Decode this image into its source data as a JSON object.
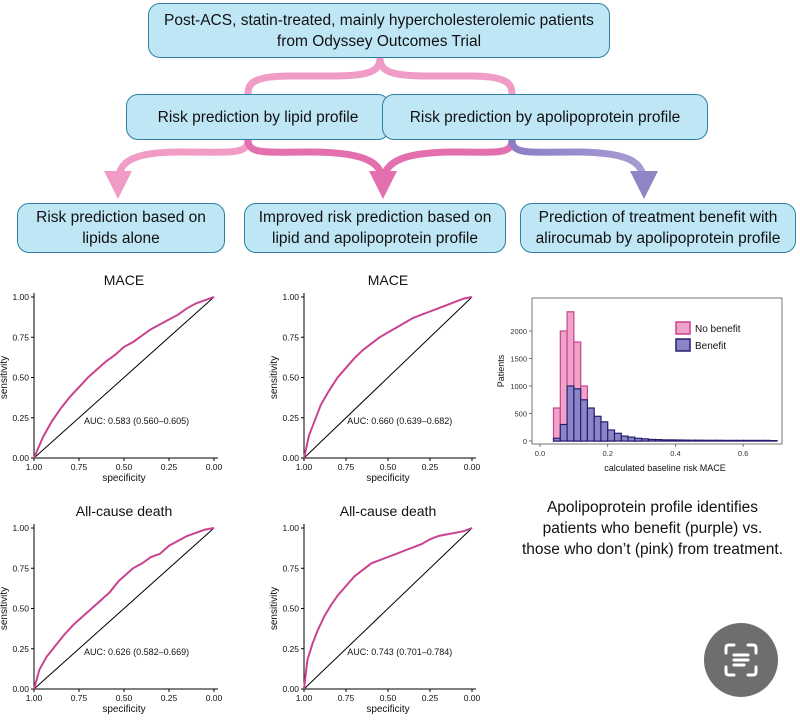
{
  "flow": {
    "top_box": {
      "line1": "Post-ACS, statin-treated, mainly hypercholesterolemic patients",
      "line2": "from Odyssey Outcomes Trial"
    },
    "mid_left": "Risk prediction by lipid profile",
    "mid_right": "Risk prediction by apolipoprotein profile",
    "bottom_left": {
      "line1": "Risk prediction based on",
      "line2": "lipids alone"
    },
    "bottom_mid": {
      "line1": "Improved risk prediction based on",
      "line2": "lipid and apolipoprotein profile"
    },
    "bottom_right": {
      "line1": "Prediction of treatment benefit with",
      "line2": "alirocumab by apolipoprotein profile"
    }
  },
  "colors": {
    "box_fill": "#bfe6f5",
    "box_border": "#2e7fa3",
    "pink": "#f09cc7",
    "purple": "#8f84c4",
    "roc": "#c9438f"
  },
  "chart_data": [
    {
      "type": "line",
      "id": "roc1",
      "title": "MACE",
      "xlabel": "specificity",
      "ylabel": "sensitivity",
      "xlim": [
        1.0,
        0.0
      ],
      "ylim": [
        0.0,
        1.0
      ],
      "xticks": [
        "1.00",
        "0.75",
        "0.50",
        "0.25",
        "0.00"
      ],
      "yticks": [
        "0.00",
        "0.25",
        "0.50",
        "0.75",
        "1.00"
      ],
      "annotation": "AUC: 0.583 (0.560–0.605)",
      "series": [
        {
          "name": "ROC",
          "x": [
            1.0,
            0.95,
            0.9,
            0.85,
            0.8,
            0.75,
            0.7,
            0.65,
            0.6,
            0.55,
            0.5,
            0.45,
            0.4,
            0.35,
            0.3,
            0.25,
            0.2,
            0.15,
            0.1,
            0.05,
            0.0
          ],
          "y": [
            0.0,
            0.13,
            0.23,
            0.31,
            0.38,
            0.44,
            0.5,
            0.55,
            0.6,
            0.64,
            0.69,
            0.72,
            0.76,
            0.8,
            0.83,
            0.86,
            0.89,
            0.93,
            0.96,
            0.98,
            1.0
          ]
        }
      ]
    },
    {
      "type": "line",
      "id": "roc2",
      "title": "MACE",
      "xlabel": "specificity",
      "ylabel": "sensitivity",
      "xlim": [
        1.0,
        0.0
      ],
      "ylim": [
        0.0,
        1.0
      ],
      "xticks": [
        "1.00",
        "0.75",
        "0.50",
        "0.25",
        "0.00"
      ],
      "yticks": [
        "0.00",
        "0.25",
        "0.50",
        "0.75",
        "1.00"
      ],
      "annotation": "AUC: 0.660 (0.639–0.682)",
      "series": [
        {
          "name": "ROC",
          "x": [
            1.0,
            0.97,
            0.93,
            0.9,
            0.85,
            0.8,
            0.75,
            0.7,
            0.65,
            0.6,
            0.55,
            0.5,
            0.45,
            0.4,
            0.35,
            0.3,
            0.25,
            0.2,
            0.15,
            0.1,
            0.05,
            0.0
          ],
          "y": [
            0.0,
            0.14,
            0.25,
            0.33,
            0.42,
            0.5,
            0.56,
            0.62,
            0.67,
            0.71,
            0.75,
            0.78,
            0.81,
            0.84,
            0.87,
            0.89,
            0.91,
            0.93,
            0.95,
            0.97,
            0.99,
            1.0
          ]
        }
      ]
    },
    {
      "type": "histogram",
      "id": "hist",
      "title": "",
      "xlabel": "calculated baseline risk MACE",
      "ylabel": "Patients",
      "xlim": [
        0.0,
        0.7
      ],
      "ylim": [
        0,
        2600
      ],
      "xticks": [
        0.0,
        0.2,
        0.4,
        0.6
      ],
      "xtick_labels": [
        "0.0",
        "0.2",
        "0.4",
        "0.6"
      ],
      "yticks": [
        0,
        500,
        1000,
        1500,
        2000
      ],
      "ytick_labels": [
        "0",
        "500",
        "1000",
        "1500",
        "2000"
      ],
      "bin_start": 0.04,
      "bin_width": 0.02,
      "legend_position": "top-right",
      "series": [
        {
          "name": "No benefit",
          "values": [
            600,
            2000,
            2350,
            1800,
            1000,
            500,
            350,
            250,
            150,
            100,
            70,
            50,
            40,
            30,
            20,
            15,
            10,
            10,
            10,
            10,
            8,
            8,
            8,
            8,
            6,
            6,
            6,
            6,
            6,
            5,
            5,
            5,
            4
          ]
        },
        {
          "name": "Benefit",
          "values": [
            50,
            300,
            1000,
            950,
            750,
            600,
            450,
            350,
            200,
            140,
            90,
            70,
            50,
            40,
            30,
            25,
            20,
            20,
            18,
            16,
            15,
            14,
            13,
            12,
            12,
            11,
            10,
            10,
            10,
            10,
            10,
            10,
            8
          ]
        }
      ]
    },
    {
      "type": "line",
      "id": "roc3",
      "title": "All-cause death",
      "xlabel": "specificity",
      "ylabel": "sensitivity",
      "xlim": [
        1.0,
        0.0
      ],
      "ylim": [
        0.0,
        1.0
      ],
      "xticks": [
        "1.00",
        "0.75",
        "0.50",
        "0.25",
        "0.00"
      ],
      "yticks": [
        "0.00",
        "0.25",
        "0.50",
        "0.75",
        "1.00"
      ],
      "annotation": "AUC: 0.626 (0.582–0.669)",
      "series": [
        {
          "name": "ROC",
          "x": [
            1.0,
            0.97,
            0.93,
            0.88,
            0.83,
            0.78,
            0.73,
            0.68,
            0.63,
            0.58,
            0.53,
            0.48,
            0.45,
            0.4,
            0.35,
            0.3,
            0.25,
            0.2,
            0.15,
            0.1,
            0.05,
            0.0
          ],
          "y": [
            0.0,
            0.12,
            0.2,
            0.27,
            0.34,
            0.4,
            0.45,
            0.5,
            0.55,
            0.6,
            0.67,
            0.72,
            0.75,
            0.78,
            0.82,
            0.84,
            0.89,
            0.92,
            0.95,
            0.97,
            0.99,
            1.0
          ]
        }
      ]
    },
    {
      "type": "line",
      "id": "roc4",
      "title": "All-cause death",
      "xlabel": "specificity",
      "ylabel": "sensitivity",
      "xlim": [
        1.0,
        0.0
      ],
      "ylim": [
        0.0,
        1.0
      ],
      "xticks": [
        "1.00",
        "0.75",
        "0.50",
        "0.25",
        "0.00"
      ],
      "yticks": [
        "0.00",
        "0.25",
        "0.50",
        "0.75",
        "1.00"
      ],
      "annotation": "AUC: 0.743 (0.701–0.784)",
      "series": [
        {
          "name": "ROC",
          "x": [
            1.0,
            0.98,
            0.95,
            0.92,
            0.88,
            0.84,
            0.8,
            0.75,
            0.7,
            0.65,
            0.6,
            0.55,
            0.5,
            0.45,
            0.4,
            0.35,
            0.3,
            0.25,
            0.2,
            0.15,
            0.1,
            0.05,
            0.0
          ],
          "y": [
            0.0,
            0.18,
            0.28,
            0.36,
            0.45,
            0.52,
            0.58,
            0.64,
            0.7,
            0.74,
            0.78,
            0.8,
            0.82,
            0.84,
            0.86,
            0.88,
            0.9,
            0.93,
            0.95,
            0.96,
            0.97,
            0.98,
            1.0
          ]
        }
      ]
    }
  ],
  "caption": {
    "line1": "Apolipoprotein profile identifies",
    "line2": "patients who benefit (purple) vs.",
    "line3": "those who don’t (pink) from treatment."
  },
  "scan_button_icon": "scan-text-icon"
}
